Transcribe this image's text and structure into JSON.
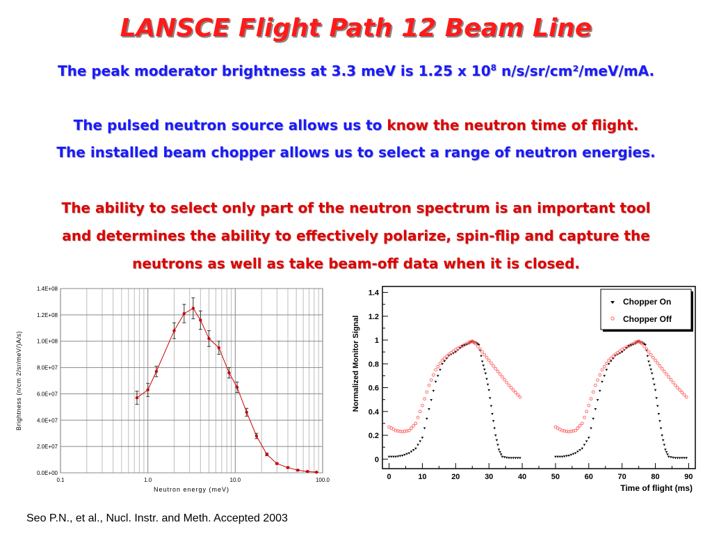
{
  "title": "LANSCE Flight Path 12 Beam Line",
  "line1": {
    "text": "The peak moderator brightness at 3.3 meV is 1.25 x 10",
    "sup": "8",
    "tail": " n/s/sr/cm²/meV/mA."
  },
  "line2": {
    "blue": "The pulsed neutron source allows us to ",
    "red": "know the neutron time of flight."
  },
  "line3": "The installed beam chopper allows us to select a range of neutron energies.",
  "line4": "The ability to select only part of the neutron spectrum is an important tool",
  "line5": "and determines the ability to effectively polarize, spin-flip and capture the",
  "line6": "neutrons as well as take beam-off data when it is closed.",
  "citation": "Seo P.N., et al., Nucl. Instr. and Meth. Accepted 2003",
  "chart_data": [
    {
      "type": "line",
      "xscale": "log",
      "xlim": [
        0.1,
        100
      ],
      "ylim": [
        0,
        140000000
      ],
      "xlabel": "Neutron energy (meV)",
      "ylabel": "Brightness (n/cm 2/sr/meV/)A/s)",
      "xticks": [
        "0.1",
        "1.0",
        "10.0",
        "100.0"
      ],
      "yticks": [
        "0.0E+00",
        "2.0E+07",
        "4.0E+07",
        "6.0E+07",
        "8.0E+07",
        "1.0E+08",
        "1.2E+08",
        "1.4E+08"
      ],
      "grid": true,
      "color": "#cc0000",
      "x": [
        0.75,
        1.0,
        1.25,
        2.0,
        2.6,
        3.3,
        4.0,
        5.0,
        6.5,
        8.5,
        10.5,
        13.5,
        17.5,
        23,
        30,
        40,
        52,
        67,
        85
      ],
      "y": [
        57000000,
        63000000,
        77000000,
        108000000,
        121000000,
        125000000,
        116000000,
        102000000,
        95000000,
        76000000,
        65000000,
        46000000,
        28000000,
        14000000,
        7000000,
        4000000,
        2000000,
        1000000,
        500000
      ],
      "errors": [
        5000000,
        5000000,
        4000000,
        6000000,
        7000000,
        8000000,
        7000000,
        6000000,
        5000000,
        4000000,
        4000000,
        3000000,
        2000000,
        1000000,
        500000,
        500000,
        300000,
        200000,
        100000
      ]
    },
    {
      "type": "scatter",
      "xlim": [
        -2,
        92
      ],
      "ylim": [
        -0.08,
        1.45
      ],
      "xlabel": "Time of flight (ms)",
      "ylabel": "Normalized Monitor Signal",
      "xticks": [
        "0",
        "10",
        "20",
        "30",
        "40",
        "50",
        "60",
        "70",
        "80",
        "90"
      ],
      "yticks": [
        "0",
        "0.2",
        "0.4",
        "0.6",
        "0.8",
        "1",
        "1.2",
        "1.4"
      ],
      "legend_position": "top-right",
      "series": [
        {
          "name": "Chopper On",
          "color": "#000000",
          "x": [
            0,
            2,
            4,
            6,
            8,
            10,
            12,
            14,
            16,
            18,
            20,
            22,
            24,
            25,
            26,
            27,
            28,
            29,
            30,
            31,
            32,
            33,
            34,
            36,
            38,
            40
          ],
          "y": [
            0.02,
            0.02,
            0.03,
            0.05,
            0.09,
            0.18,
            0.42,
            0.65,
            0.8,
            0.87,
            0.9,
            0.95,
            0.97,
            0.99,
            0.98,
            0.96,
            0.82,
            0.72,
            0.58,
            0.38,
            0.2,
            0.08,
            0.02,
            0.01,
            0.01,
            0.01
          ]
        },
        {
          "name": "Chopper Off",
          "color": "#ff5a5a",
          "x": [
            0,
            2,
            4,
            6,
            8,
            10,
            12,
            14,
            16,
            18,
            20,
            22,
            24,
            25,
            26,
            28,
            30,
            32,
            34,
            36,
            38,
            40
          ],
          "y": [
            0.27,
            0.24,
            0.23,
            0.24,
            0.3,
            0.45,
            0.62,
            0.75,
            0.83,
            0.88,
            0.92,
            0.95,
            0.98,
            0.99,
            0.97,
            0.9,
            0.83,
            0.76,
            0.69,
            0.62,
            0.56,
            0.5
          ]
        }
      ]
    }
  ]
}
